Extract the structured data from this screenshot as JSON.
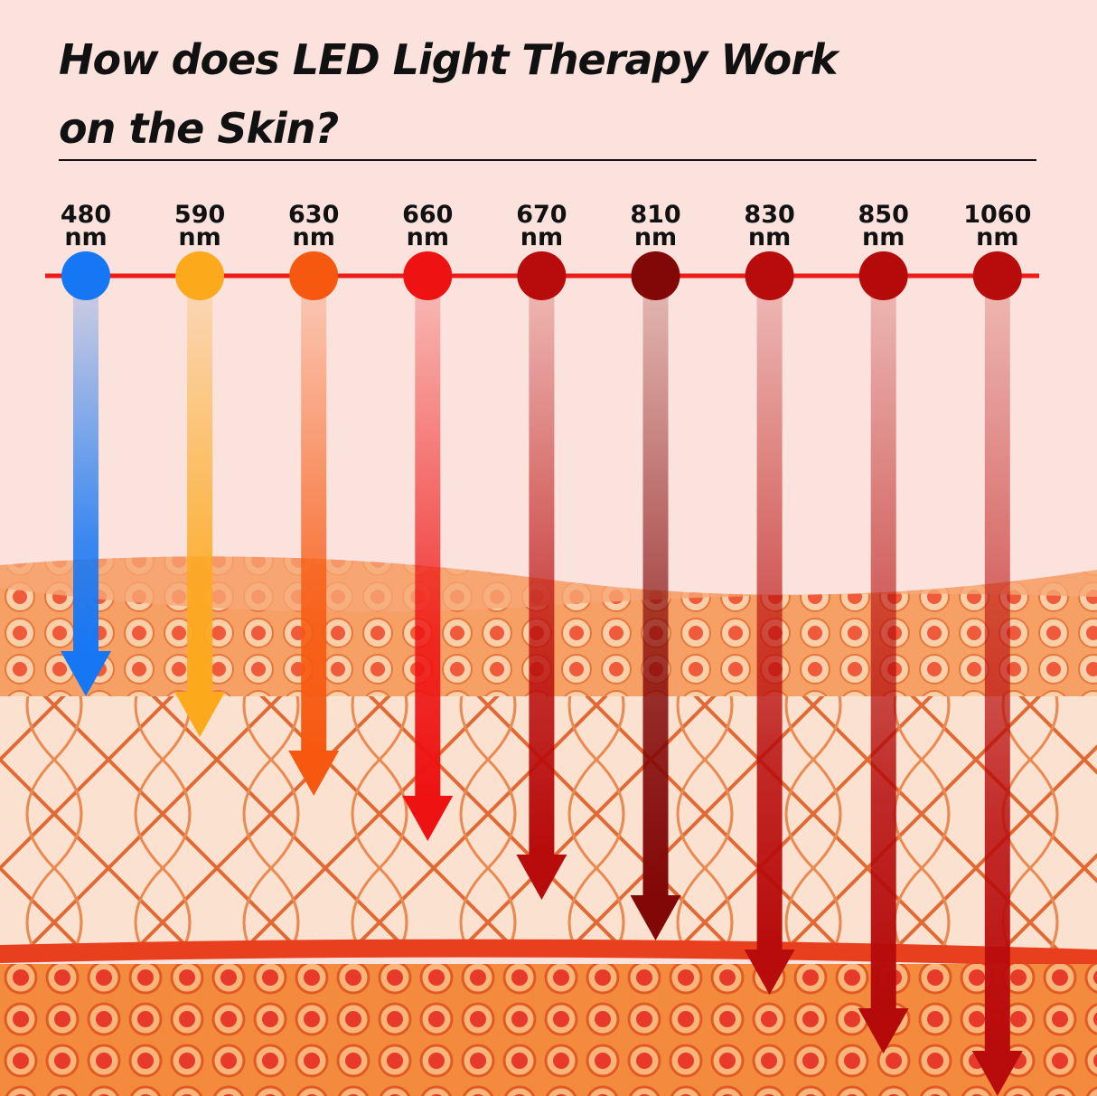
{
  "title": [
    "How does LED Light Therapy Work",
    "on the Skin?"
  ],
  "wavelengths": [
    {
      "value": "480",
      "unit": "nm",
      "color": "#1677f5"
    },
    {
      "value": "590",
      "unit": "nm",
      "color": "#fca91c"
    },
    {
      "value": "630",
      "unit": "nm",
      "color": "#f7580f"
    },
    {
      "value": "660",
      "unit": "nm",
      "color": "#ee1212"
    },
    {
      "value": "670",
      "unit": "nm",
      "color": "#b80b0b"
    },
    {
      "value": "810",
      "unit": "nm",
      "color": "#820707"
    },
    {
      "value": "830",
      "unit": "nm",
      "color": "#b80b0b"
    },
    {
      "value": "850",
      "unit": "nm",
      "color": "#b40a0a"
    },
    {
      "value": "1060",
      "unit": "nm",
      "color": "#b80b0b"
    }
  ]
}
